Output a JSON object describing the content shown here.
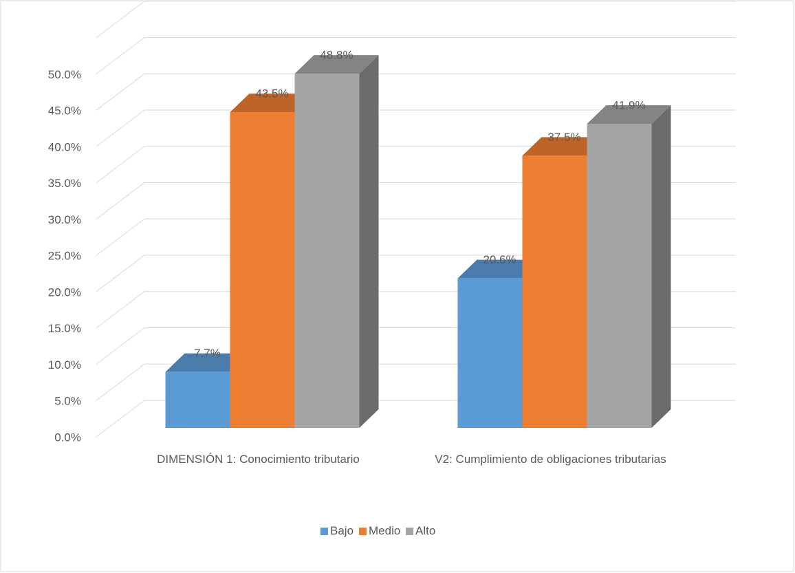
{
  "chart_data": {
    "type": "bar3d",
    "categories": [
      "DIMENSIÓN 1:  Conocimiento tributario",
      "V2: Cumplimiento de obligaciones tributarias"
    ],
    "series": [
      {
        "name": "Bajo",
        "color": "#5b9bd5",
        "values": [
          7.7,
          20.6
        ],
        "value_labels": [
          "7.7%",
          "20.6%"
        ]
      },
      {
        "name": "Medio",
        "color": "#ed7d31",
        "values": [
          43.5,
          37.5
        ],
        "value_labels": [
          "43.5%",
          "37.5%"
        ]
      },
      {
        "name": "Alto",
        "color": "#a5a5a5",
        "values": [
          48.8,
          41.9
        ],
        "value_labels": [
          "48.8%",
          "41.9%"
        ]
      }
    ],
    "ylim": [
      0,
      55
    ],
    "yticks": [
      {
        "value": 0,
        "label": "0.0%"
      },
      {
        "value": 5,
        "label": "5.0%"
      },
      {
        "value": 10,
        "label": "10.0%"
      },
      {
        "value": 15,
        "label": "15.0%"
      },
      {
        "value": 20,
        "label": "20.0%"
      },
      {
        "value": 25,
        "label": "25.0%"
      },
      {
        "value": 30,
        "label": "30.0%"
      },
      {
        "value": 35,
        "label": "35.0%"
      },
      {
        "value": 40,
        "label": "40.0%"
      },
      {
        "value": 45,
        "label": "45.0%"
      },
      {
        "value": 50,
        "label": "50.0%"
      }
    ],
    "grid": true,
    "legend": "bottom"
  }
}
